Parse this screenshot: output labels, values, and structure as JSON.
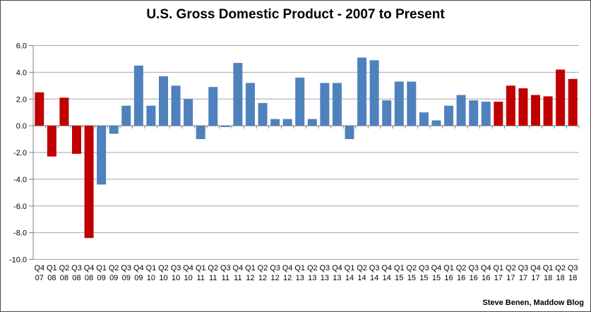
{
  "chart_data": {
    "type": "bar",
    "title": "U.S. Gross Domestic Product - 2007 to Present",
    "attribution": "Steve Benen, Maddow Blog",
    "ylabel": "",
    "xlabel": "",
    "ylim": [
      -10.0,
      6.0
    ],
    "ytick_step": 2.0,
    "ytick_labels": [
      "6.0",
      "4.0",
      "2.0",
      "0.0",
      "-2.0",
      "-4.0",
      "-6.0",
      "-8.0",
      "-10.0"
    ],
    "grid": true,
    "legend": "none",
    "colors": {
      "red": "#C00000",
      "blue": "#4F81BD",
      "gridline": "#A6A6A6",
      "axis": "#808080",
      "text": "#000000"
    },
    "points": [
      {
        "quarter": "Q4",
        "year": "07",
        "value": 2.5,
        "color": "red"
      },
      {
        "quarter": "Q1",
        "year": "08",
        "value": -2.3,
        "color": "red"
      },
      {
        "quarter": "Q2",
        "year": "08",
        "value": 2.1,
        "color": "red"
      },
      {
        "quarter": "Q3",
        "year": "08",
        "value": -2.1,
        "color": "red"
      },
      {
        "quarter": "Q4",
        "year": "08",
        "value": -8.4,
        "color": "red"
      },
      {
        "quarter": "Q1",
        "year": "09",
        "value": -4.4,
        "color": "blue"
      },
      {
        "quarter": "Q2",
        "year": "09",
        "value": -0.6,
        "color": "blue"
      },
      {
        "quarter": "Q3",
        "year": "09",
        "value": 1.5,
        "color": "blue"
      },
      {
        "quarter": "Q4",
        "year": "09",
        "value": 4.5,
        "color": "blue"
      },
      {
        "quarter": "Q1",
        "year": "10",
        "value": 1.5,
        "color": "blue"
      },
      {
        "quarter": "Q2",
        "year": "10",
        "value": 3.7,
        "color": "blue"
      },
      {
        "quarter": "Q3",
        "year": "10",
        "value": 3.0,
        "color": "blue"
      },
      {
        "quarter": "Q4",
        "year": "10",
        "value": 2.0,
        "color": "blue"
      },
      {
        "quarter": "Q1",
        "year": "11",
        "value": -1.0,
        "color": "blue"
      },
      {
        "quarter": "Q2",
        "year": "11",
        "value": 2.9,
        "color": "blue"
      },
      {
        "quarter": "Q3",
        "year": "11",
        "value": -0.1,
        "color": "blue"
      },
      {
        "quarter": "Q4",
        "year": "11",
        "value": 4.7,
        "color": "blue"
      },
      {
        "quarter": "Q1",
        "year": "12",
        "value": 3.2,
        "color": "blue"
      },
      {
        "quarter": "Q2",
        "year": "12",
        "value": 1.7,
        "color": "blue"
      },
      {
        "quarter": "Q3",
        "year": "12",
        "value": 0.5,
        "color": "blue"
      },
      {
        "quarter": "Q4",
        "year": "12",
        "value": 0.5,
        "color": "blue"
      },
      {
        "quarter": "Q1",
        "year": "13",
        "value": 3.6,
        "color": "blue"
      },
      {
        "quarter": "Q2",
        "year": "13",
        "value": 0.5,
        "color": "blue"
      },
      {
        "quarter": "Q3",
        "year": "13",
        "value": 3.2,
        "color": "blue"
      },
      {
        "quarter": "Q4",
        "year": "13",
        "value": 3.2,
        "color": "blue"
      },
      {
        "quarter": "Q1",
        "year": "14",
        "value": -1.0,
        "color": "blue"
      },
      {
        "quarter": "Q2",
        "year": "14",
        "value": 5.1,
        "color": "blue"
      },
      {
        "quarter": "Q3",
        "year": "14",
        "value": 4.9,
        "color": "blue"
      },
      {
        "quarter": "Q4",
        "year": "14",
        "value": 1.9,
        "color": "blue"
      },
      {
        "quarter": "Q1",
        "year": "15",
        "value": 3.3,
        "color": "blue"
      },
      {
        "quarter": "Q2",
        "year": "15",
        "value": 3.3,
        "color": "blue"
      },
      {
        "quarter": "Q3",
        "year": "15",
        "value": 1.0,
        "color": "blue"
      },
      {
        "quarter": "Q4",
        "year": "15",
        "value": 0.4,
        "color": "blue"
      },
      {
        "quarter": "Q1",
        "year": "16",
        "value": 1.5,
        "color": "blue"
      },
      {
        "quarter": "Q2",
        "year": "16",
        "value": 2.3,
        "color": "blue"
      },
      {
        "quarter": "Q3",
        "year": "16",
        "value": 1.9,
        "color": "blue"
      },
      {
        "quarter": "Q4",
        "year": "16",
        "value": 1.8,
        "color": "blue"
      },
      {
        "quarter": "Q1",
        "year": "17",
        "value": 1.8,
        "color": "red"
      },
      {
        "quarter": "Q2",
        "year": "17",
        "value": 3.0,
        "color": "red"
      },
      {
        "quarter": "Q3",
        "year": "17",
        "value": 2.8,
        "color": "red"
      },
      {
        "quarter": "Q4",
        "year": "17",
        "value": 2.3,
        "color": "red"
      },
      {
        "quarter": "Q1",
        "year": "18",
        "value": 2.2,
        "color": "red"
      },
      {
        "quarter": "Q2",
        "year": "18",
        "value": 4.2,
        "color": "red"
      },
      {
        "quarter": "Q3",
        "year": "18",
        "value": 3.5,
        "color": "red"
      }
    ]
  }
}
